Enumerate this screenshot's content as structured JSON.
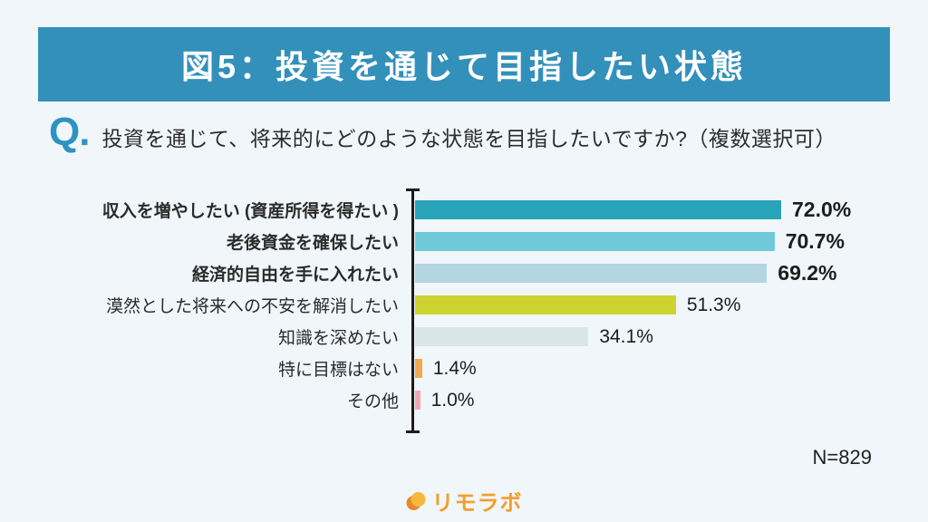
{
  "header": {
    "title": "図5：投資を通じて目指したい状態",
    "bg_color": "#3390BA"
  },
  "question": {
    "prefix": "Q.",
    "text": "投資を通じて、将来的にどのような状態を目指したいですか?（複数選択可）"
  },
  "chart_data": {
    "type": "bar",
    "orientation": "horizontal",
    "title": "図5：投資を通じて目指したい状態",
    "xlabel": "",
    "ylabel": "",
    "xlim": [
      0,
      72
    ],
    "grid": false,
    "legend": "none",
    "categories": [
      "収入を増やしたい (資産所得を得たい )",
      "老後資金を確保したい",
      "経済的自由を手に入れたい",
      "漠然とした将来への不安を解消したい",
      "知識を深めたい",
      "特に目標はない",
      "その他"
    ],
    "values": [
      72.0,
      70.7,
      69.2,
      51.3,
      34.1,
      1.4,
      1.0
    ],
    "rows": [
      {
        "label": "収入を増やしたい (資産所得を得たい )",
        "value": 72.0,
        "value_label": "72.0%",
        "color": "#29A3BA",
        "emphasis": true
      },
      {
        "label": "老後資金を確保したい",
        "value": 70.7,
        "value_label": "70.7%",
        "color": "#6FC9D8",
        "emphasis": true
      },
      {
        "label": "経済的自由を手に入れたい",
        "value": 69.2,
        "value_label": "69.2%",
        "color": "#B3D5E0",
        "emphasis": true
      },
      {
        "label": "漠然とした将来への不安を解消したい",
        "value": 51.3,
        "value_label": "51.3%",
        "color": "#CDD32F",
        "emphasis": false
      },
      {
        "label": "知識を深めたい",
        "value": 34.1,
        "value_label": "34.1%",
        "color": "#D8E6EA",
        "emphasis": false
      },
      {
        "label": "特に目標はない",
        "value": 1.4,
        "value_label": "1.4%",
        "color": "#F0A950",
        "emphasis": false
      },
      {
        "label": "その他",
        "value": 1.0,
        "value_label": "1.0%",
        "color": "#F2A7AE",
        "emphasis": false
      }
    ]
  },
  "footer": {
    "n_label": "N=829",
    "logo_text": "リモラボ",
    "logo_color_dark": "#E8872E",
    "logo_color_light": "#F6B83C"
  }
}
